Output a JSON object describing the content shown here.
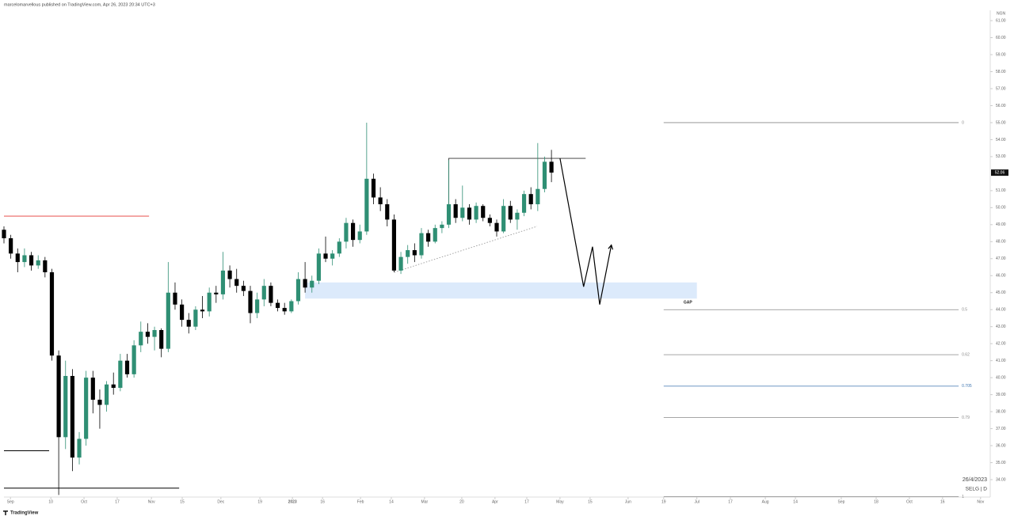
{
  "header": "marcelomarvellous published on TradingView.com, Apr 26, 2023 20:34 UTC+3",
  "footer": "TradingView",
  "chart_data": {
    "type": "candlestick",
    "currency": "NGN",
    "date_label": "26/4/2023",
    "symbol": "SELG | D",
    "up_color": "#2f8f74",
    "down_color": "#000000",
    "last_price": {
      "value": 52.06,
      "label": "52.06"
    },
    "xlim": [
      0,
      288
    ],
    "ylim": [
      33,
      61.6
    ],
    "xticks": [
      {
        "value": 1.9,
        "label": "Sep"
      },
      {
        "value": 13.7,
        "label": "10"
      },
      {
        "value": 23.4,
        "label": "Oct"
      },
      {
        "value": 33.1,
        "label": "17"
      },
      {
        "value": 43.1,
        "label": "Nov"
      },
      {
        "value": 52.1,
        "label": "15"
      },
      {
        "value": 63.4,
        "label": "Dec"
      },
      {
        "value": 74.8,
        "label": "19"
      },
      {
        "value": 84.3,
        "label": "2023"
      },
      {
        "value": 93.1,
        "label": "16"
      },
      {
        "value": 104.2,
        "label": "Feb"
      },
      {
        "value": 113.2,
        "label": "14"
      },
      {
        "value": 122.9,
        "label": "Mar"
      },
      {
        "value": 133.8,
        "label": "20"
      },
      {
        "value": 143.5,
        "label": "Apr"
      },
      {
        "value": 152.8,
        "label": "17"
      },
      {
        "value": 162.5,
        "label": "May"
      },
      {
        "value": 171.3,
        "label": "15"
      },
      {
        "value": 182.4,
        "label": "Jun"
      },
      {
        "value": 192.8,
        "label": "19"
      },
      {
        "value": 202.5,
        "label": "Jul"
      },
      {
        "value": 212.3,
        "label": "17"
      },
      {
        "value": 222.5,
        "label": "Aug"
      },
      {
        "value": 231.3,
        "label": "14"
      },
      {
        "value": 244.7,
        "label": "Sep"
      },
      {
        "value": 254.9,
        "label": "18"
      },
      {
        "value": 264.6,
        "label": "Oct"
      },
      {
        "value": 274.3,
        "label": "16"
      },
      {
        "value": 285.4,
        "label": "Nov"
      }
    ],
    "yticks": [
      {
        "value": 34,
        "label": "34.00"
      },
      {
        "value": 35,
        "label": "35.00"
      },
      {
        "value": 36,
        "label": "36.00"
      },
      {
        "value": 37,
        "label": "37.00"
      },
      {
        "value": 38,
        "label": "38.00"
      },
      {
        "value": 39,
        "label": "39.00"
      },
      {
        "value": 40,
        "label": "40.00"
      },
      {
        "value": 41,
        "label": "41.00"
      },
      {
        "value": 42,
        "label": "42.00"
      },
      {
        "value": 43,
        "label": "43.00"
      },
      {
        "value": 44,
        "label": "44.00"
      },
      {
        "value": 45,
        "label": "45.00"
      },
      {
        "value": 46,
        "label": "46.00"
      },
      {
        "value": 47,
        "label": "47.00"
      },
      {
        "value": 48,
        "label": "48.00"
      },
      {
        "value": 49,
        "label": "49.00"
      },
      {
        "value": 50,
        "label": "50.00"
      },
      {
        "value": 51,
        "label": "51.00"
      },
      {
        "value": 53,
        "label": "53.00"
      },
      {
        "value": 54,
        "label": "54.00"
      },
      {
        "value": 55,
        "label": "55.00"
      },
      {
        "value": 56,
        "label": "56.00"
      },
      {
        "value": 57,
        "label": "57.00"
      },
      {
        "value": 58,
        "label": "58.00"
      },
      {
        "value": 59,
        "label": "59.00"
      },
      {
        "value": 60,
        "label": "60.00"
      },
      {
        "value": 61,
        "label": "61.00"
      }
    ],
    "x": [
      0,
      2,
      4,
      6,
      8,
      10,
      12,
      14,
      16,
      18,
      20,
      22,
      24,
      26,
      28,
      30,
      32,
      34,
      36,
      38,
      40,
      42,
      44,
      46,
      48,
      50,
      52,
      54,
      56,
      58,
      60,
      62,
      64,
      66,
      68,
      70,
      72,
      74,
      76,
      78,
      80,
      82,
      84,
      86,
      88,
      90,
      92,
      94,
      96,
      98,
      100,
      102,
      104,
      106,
      108,
      110,
      112,
      114,
      116,
      118,
      120,
      122,
      124,
      126,
      128,
      130,
      132,
      134,
      136,
      138,
      140,
      142,
      144,
      146,
      148,
      150,
      152,
      154,
      156,
      158,
      160
    ],
    "ohlc": [
      [
        48.7,
        48.9,
        47.9,
        48.2
      ],
      [
        48.2,
        48.4,
        47.0,
        47.3
      ],
      [
        47.3,
        47.6,
        46.2,
        46.8
      ],
      [
        46.8,
        47.6,
        46.5,
        47.2
      ],
      [
        47.2,
        47.4,
        46.3,
        46.6
      ],
      [
        46.6,
        47.2,
        46.4,
        46.9
      ],
      [
        46.9,
        47.1,
        45.9,
        46.2
      ],
      [
        46.2,
        46.4,
        41.0,
        41.3
      ],
      [
        41.3,
        41.6,
        33.1,
        36.5
      ],
      [
        36.5,
        41.0,
        35.8,
        40.1
      ],
      [
        40.1,
        40.5,
        34.5,
        35.3
      ],
      [
        35.3,
        36.8,
        34.9,
        36.4
      ],
      [
        36.4,
        40.4,
        36.0,
        40.0
      ],
      [
        40.0,
        40.4,
        37.9,
        38.7
      ],
      [
        38.7,
        39.3,
        37.0,
        38.4
      ],
      [
        38.4,
        39.8,
        38.0,
        39.6
      ],
      [
        39.6,
        40.3,
        39.0,
        39.4
      ],
      [
        39.4,
        41.4,
        39.2,
        41.0
      ],
      [
        41.0,
        41.4,
        40.0,
        40.2
      ],
      [
        40.2,
        42.2,
        40.0,
        41.9
      ],
      [
        41.9,
        43.3,
        41.5,
        42.7
      ],
      [
        42.7,
        43.2,
        42.0,
        42.4
      ],
      [
        42.4,
        43.0,
        41.6,
        42.8
      ],
      [
        42.8,
        42.9,
        41.2,
        41.7
      ],
      [
        41.7,
        46.8,
        41.5,
        45.0
      ],
      [
        45.0,
        45.6,
        44.0,
        44.3
      ],
      [
        44.3,
        44.6,
        43.0,
        43.4
      ],
      [
        43.4,
        43.8,
        42.6,
        43.0
      ],
      [
        43.0,
        44.2,
        42.8,
        44.0
      ],
      [
        44.0,
        44.8,
        43.5,
        43.9
      ],
      [
        43.9,
        45.3,
        43.6,
        45.0
      ],
      [
        45.0,
        45.4,
        44.4,
        44.9
      ],
      [
        44.9,
        47.4,
        44.6,
        46.3
      ],
      [
        46.3,
        46.6,
        45.3,
        45.8
      ],
      [
        45.8,
        46.4,
        45.0,
        45.4
      ],
      [
        45.4,
        45.7,
        44.8,
        45.1
      ],
      [
        45.1,
        45.4,
        43.2,
        43.8
      ],
      [
        43.8,
        45.0,
        43.5,
        44.6
      ],
      [
        44.6,
        45.8,
        44.2,
        45.4
      ],
      [
        45.4,
        45.6,
        44.2,
        44.4
      ],
      [
        44.4,
        44.6,
        43.9,
        44.1
      ],
      [
        44.1,
        44.4,
        43.7,
        43.9
      ],
      [
        43.9,
        44.6,
        43.8,
        44.5
      ],
      [
        44.5,
        46.2,
        44.3,
        45.8
      ],
      [
        45.8,
        46.8,
        45.0,
        45.3
      ],
      [
        45.3,
        46.0,
        45.0,
        45.7
      ],
      [
        45.7,
        47.6,
        45.5,
        47.3
      ],
      [
        47.3,
        48.3,
        46.8,
        47.0
      ],
      [
        47.0,
        47.5,
        46.6,
        47.3
      ],
      [
        47.3,
        48.2,
        47.1,
        48.0
      ],
      [
        48.0,
        49.4,
        47.6,
        49.1
      ],
      [
        49.1,
        49.3,
        47.7,
        48.1
      ],
      [
        48.1,
        49.0,
        47.9,
        48.6
      ],
      [
        48.6,
        55.0,
        48.4,
        51.7
      ],
      [
        51.7,
        52.0,
        50.2,
        50.6
      ],
      [
        50.6,
        51.2,
        49.8,
        50.2
      ],
      [
        50.2,
        50.5,
        48.9,
        49.3
      ],
      [
        49.3,
        49.6,
        46.2,
        46.3
      ],
      [
        46.3,
        47.4,
        46.1,
        47.1
      ],
      [
        47.1,
        47.8,
        46.7,
        47.5
      ],
      [
        47.5,
        47.9,
        46.8,
        47.2
      ],
      [
        47.2,
        48.8,
        47.0,
        48.5
      ],
      [
        48.5,
        48.7,
        47.7,
        48.0
      ],
      [
        48.0,
        49.0,
        47.9,
        48.8
      ],
      [
        48.8,
        49.2,
        48.5,
        49.0
      ],
      [
        49.0,
        52.8,
        48.8,
        50.2
      ],
      [
        50.2,
        50.5,
        49.1,
        49.4
      ],
      [
        49.4,
        51.3,
        49.2,
        50.0
      ],
      [
        50.0,
        50.2,
        49.0,
        49.3
      ],
      [
        49.3,
        50.3,
        49.1,
        50.1
      ],
      [
        50.1,
        50.2,
        49.2,
        49.4
      ],
      [
        49.4,
        49.6,
        48.9,
        49.1
      ],
      [
        49.1,
        49.3,
        48.3,
        48.6
      ],
      [
        48.6,
        50.5,
        48.5,
        50.1
      ],
      [
        50.1,
        50.4,
        49.1,
        49.3
      ],
      [
        49.3,
        49.9,
        48.7,
        49.7
      ],
      [
        49.7,
        51.0,
        49.5,
        50.8
      ],
      [
        50.8,
        51.2,
        49.9,
        50.2
      ],
      [
        50.2,
        53.8,
        49.8,
        51.1
      ],
      [
        51.1,
        53.0,
        50.9,
        52.7
      ],
      [
        52.7,
        53.4,
        51.5,
        52.06
      ]
    ],
    "drawings": [
      {
        "kind": "line",
        "color": "#e53935",
        "points": [
          [
            0,
            49.5
          ],
          [
            42.4,
            49.5
          ]
        ]
      },
      {
        "kind": "line",
        "color": "#000000",
        "points": [
          [
            0,
            35.7
          ],
          [
            13.2,
            35.7
          ]
        ]
      },
      {
        "kind": "line",
        "color": "#000000",
        "points": [
          [
            0,
            33.5
          ],
          [
            51.2,
            33.5
          ]
        ]
      },
      {
        "kind": "line",
        "color": "#333333",
        "points": [
          [
            130,
            49.9
          ],
          [
            130,
            52.9
          ],
          [
            170,
            52.9
          ]
        ]
      },
      {
        "kind": "dotted",
        "color": "#999999",
        "points": [
          [
            114.1,
            46.2
          ],
          [
            155.8,
            48.9
          ]
        ]
      },
      {
        "kind": "arrow",
        "color": "#000000",
        "points": [
          [
            162.5,
            52.9
          ],
          [
            169.4,
            45.35
          ],
          [
            172,
            47.7
          ],
          [
            174.1,
            44.3
          ],
          [
            177.5,
            47.8
          ]
        ]
      }
    ],
    "gap_zone": {
      "label": "GAP",
      "color": "#dceafb",
      "x": [
        88,
        202.5
      ],
      "price": [
        44.65,
        45.6
      ]
    },
    "fib": {
      "x": [
        192.8,
        279
      ],
      "levels": [
        {
          "label": "0",
          "price": 55.0,
          "color": "#888888"
        },
        {
          "label": "0.5",
          "price": 44.0,
          "color": "#888888"
        },
        {
          "label": "0.62",
          "price": 41.35,
          "color": "#888888"
        },
        {
          "label": "0.705",
          "price": 39.5,
          "color": "#3d74b0"
        },
        {
          "label": "0.79",
          "price": 37.65,
          "color": "#888888"
        },
        {
          "label": "1",
          "price": 33.0,
          "color": "#888888"
        }
      ]
    }
  }
}
